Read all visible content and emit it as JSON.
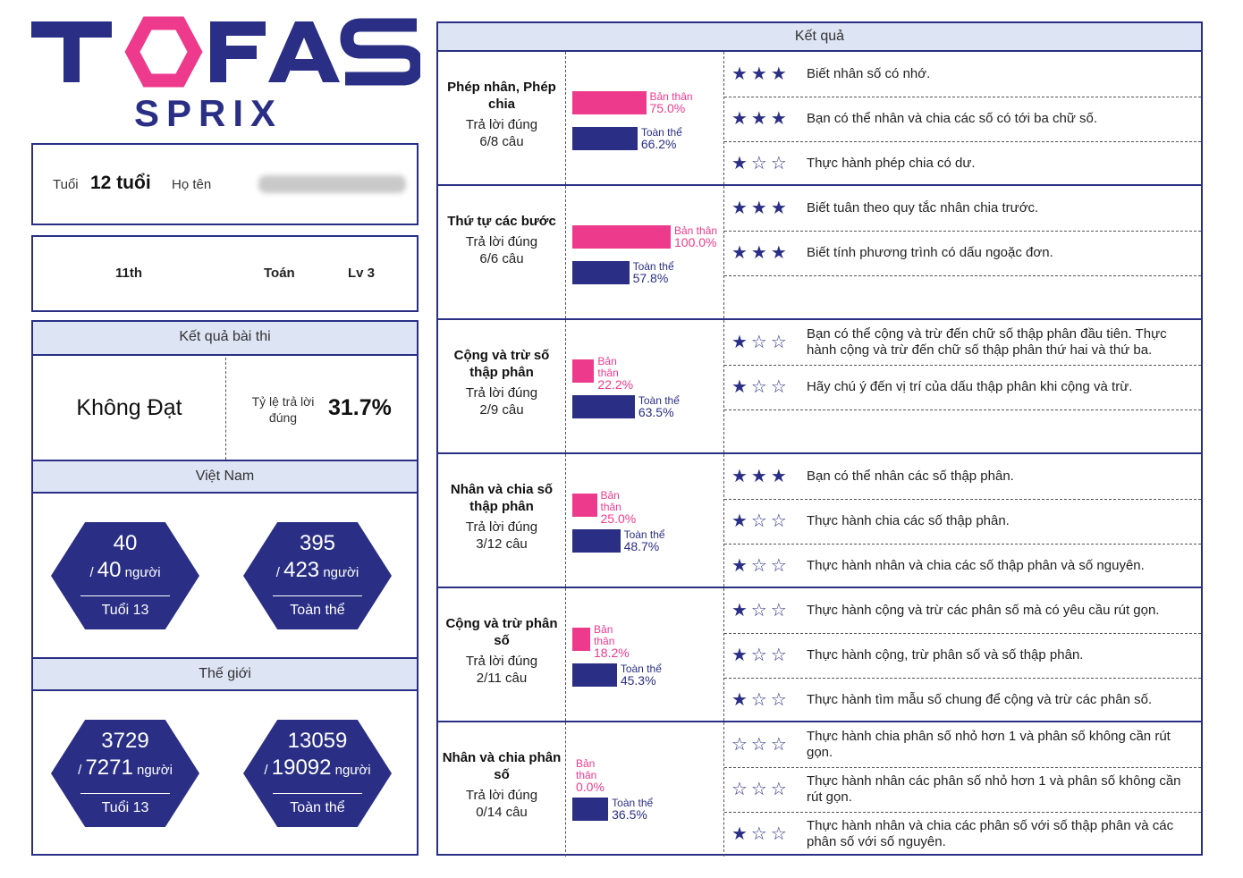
{
  "logo": {
    "brand": "TOFAS",
    "sub": "SPRIX"
  },
  "student": {
    "age_label": "Tuổi",
    "age_value": "12 tuổi",
    "name_label": "Họ tên"
  },
  "grade": {
    "grade": "11th",
    "subject": "Toán",
    "level": "Lv 3"
  },
  "exam": {
    "header": "Kết quả bài thi",
    "verdict": "Không Đạt",
    "rate_label": "Tỷ lệ trả lời đúng",
    "rate_value": "31.7%"
  },
  "vietnam": {
    "header": "Việt Nam",
    "age": {
      "rank": "40",
      "total": "40",
      "unit": "người",
      "label": "Tuổi 13"
    },
    "all": {
      "rank": "395",
      "total": "423",
      "unit": "người",
      "label": "Toàn thể"
    }
  },
  "world": {
    "header": "Thế giới",
    "age": {
      "rank": "3729",
      "total": "7271",
      "unit": "người",
      "label": "Tuổi 13"
    },
    "all": {
      "rank": "13059",
      "total": "19092",
      "unit": "người",
      "label": "Toàn thể"
    }
  },
  "results": {
    "header": "Kết quả",
    "self_label": "Bản thân",
    "all_label": "Toàn thể",
    "answered_label": "Trả lời đúng",
    "colors": {
      "self": "#ee3a8c",
      "all": "#2a2f85"
    },
    "topics": [
      {
        "title": "Phép nhân, Phép chia",
        "score": "6/8 câu",
        "self_pct": 75.0,
        "all_pct": 66.2,
        "self_text": "75.0%",
        "all_text": "66.2%",
        "items": [
          {
            "stars": 3,
            "text": "Biết nhân số có nhớ."
          },
          {
            "stars": 3,
            "text": "Bạn có thể nhân và chia các số có tới ba chữ số."
          },
          {
            "stars": 1,
            "text": "Thực hành phép chia có dư."
          }
        ]
      },
      {
        "title": "Thứ tự các bước",
        "score": "6/6 câu",
        "self_pct": 100.0,
        "all_pct": 57.8,
        "self_text": "100.0%",
        "all_text": "57.8%",
        "items": [
          {
            "stars": 3,
            "text": "Biết tuân theo quy tắc nhân chia trước."
          },
          {
            "stars": 3,
            "text": "Biết tính phương trình có dấu ngoặc đơn."
          }
        ]
      },
      {
        "title": "Cộng và trừ số thập phân",
        "score": "2/9 câu",
        "self_pct": 22.2,
        "all_pct": 63.5,
        "self_text": "22.2%",
        "all_text": "63.5%",
        "items": [
          {
            "stars": 1,
            "text": "Bạn có thể cộng và trừ đến chữ số thập phân đầu tiên. Thực hành cộng và trừ đến chữ số thập phân thứ hai và thứ ba."
          },
          {
            "stars": 1,
            "text": "Hãy chú ý đến vị trí của dấu thập phân khi cộng và trừ."
          }
        ]
      },
      {
        "title": "Nhân và chia số thập phân",
        "score": "3/12 câu",
        "self_pct": 25.0,
        "all_pct": 48.7,
        "self_text": "25.0%",
        "all_text": "48.7%",
        "items": [
          {
            "stars": 3,
            "text": "Bạn có thể nhân các số thập phân."
          },
          {
            "stars": 1,
            "text": "Thực hành chia các số thập phân."
          },
          {
            "stars": 1,
            "text": "Thực hành nhân và chia các số thập phân và số nguyên."
          }
        ]
      },
      {
        "title": "Cộng và trừ phân số",
        "score": "2/11 câu",
        "self_pct": 18.2,
        "all_pct": 45.3,
        "self_text": "18.2%",
        "all_text": "45.3%",
        "items": [
          {
            "stars": 1,
            "text": "Thực hành cộng và trừ các phân số mà có yêu cầu rút gọn."
          },
          {
            "stars": 1,
            "text": "Thực hành cộng, trừ phân số và số thập phân."
          },
          {
            "stars": 1,
            "text": "Thực hành tìm mẫu số chung để cộng và trừ các phân số."
          }
        ]
      },
      {
        "title": "Nhân và chia phân số",
        "score": "0/14 câu",
        "self_pct": 0.0,
        "all_pct": 36.5,
        "self_text": "0.0%",
        "all_text": "36.5%",
        "items": [
          {
            "stars": 0,
            "text": "Thực hành chia phân số nhỏ hơn 1 và phân số không cần rút gọn."
          },
          {
            "stars": 0,
            "text": "Thực hành nhân các phân số nhỏ hơn 1 và phân số không cần rút gọn."
          },
          {
            "stars": 1,
            "text": "Thực hành nhân và chia các phân số với số thập phân và các phân số với số nguyên."
          }
        ]
      }
    ]
  }
}
